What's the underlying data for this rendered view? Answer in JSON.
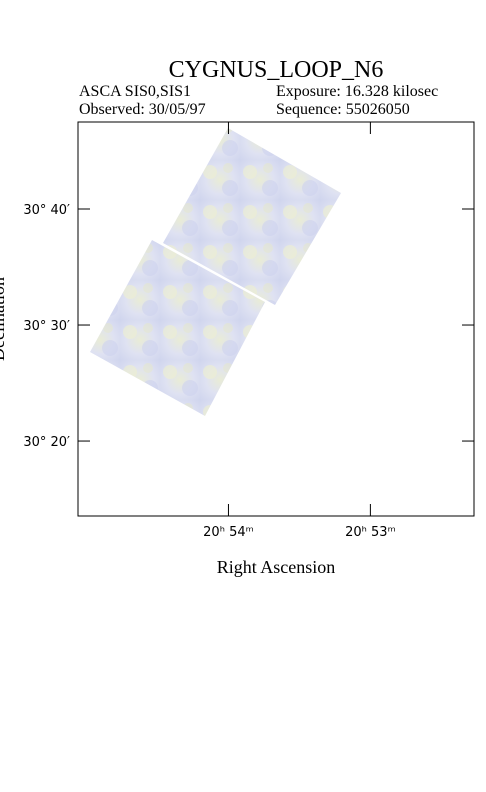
{
  "chart_data": {
    "type": "image",
    "title": "CYGNUS_LOOP_N6",
    "instrument": "ASCA SIS0,SIS1",
    "exposure": "Exposure: 16.328 kilosec",
    "observed": "Observed: 30/05/97",
    "sequence": "Sequence: 55026050",
    "x_label": "Right Ascension",
    "y_label": "Declination",
    "xlim": [
      1255.06,
      1252.27
    ],
    "ylim": [
      30.2256,
      30.7917
    ],
    "xticks": [
      {
        "value": 1254,
        "label": "20ʰ 54ᵐ"
      },
      {
        "value": 1253,
        "label": "20ʰ 53ᵐ"
      }
    ],
    "yticks": [
      {
        "value": 30.3333,
        "label": "30° 20′"
      },
      {
        "value": 30.5,
        "label": "30° 30′"
      },
      {
        "value": 30.6667,
        "label": "30° 40′"
      }
    ]
  }
}
